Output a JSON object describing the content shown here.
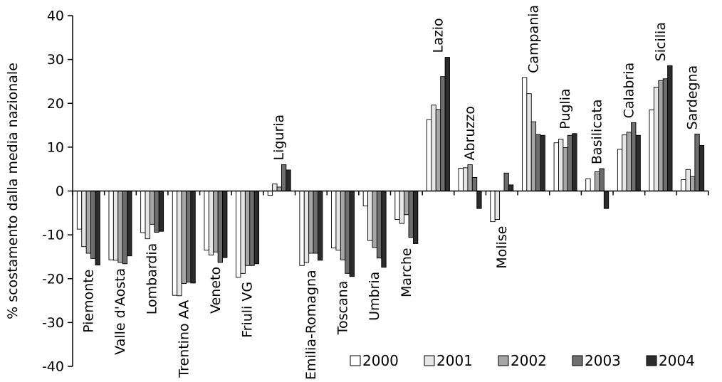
{
  "chart_data": {
    "type": "bar",
    "ylabel": "% scostamento dalla media nazionale",
    "xlabel": "",
    "title": "",
    "ylim": [
      -40,
      40
    ],
    "yticks": [
      40,
      30,
      20,
      10,
      0,
      -10,
      -20,
      -30,
      -40
    ],
    "legend_position": "bottom-right",
    "grid": false,
    "categories": [
      "Piemonte",
      "Valle d'Aosta",
      "Lombardia",
      "Trentino AA",
      "Veneto",
      "Friuli VG",
      "Liguria",
      "Emilia-Romagna",
      "Toscana",
      "Umbria",
      "Marche",
      "Lazio",
      "Abruzzo",
      "Molise",
      "Campania",
      "Puglia",
      "Basilicata",
      "Calabria",
      "Sicilia",
      "Sardegna"
    ],
    "series": [
      {
        "name": "2000",
        "color": "#ffffff",
        "values": [
          -8.7,
          -15.7,
          -9.5,
          -23.8,
          -13.5,
          -19.7,
          -1.0,
          -17.0,
          -13.0,
          -3.4,
          -6.5,
          16.3,
          5.2,
          -7.0,
          25.9,
          11.0,
          2.8,
          9.5,
          18.5,
          2.6
        ]
      },
      {
        "name": "2001",
        "color": "#e6e6e6",
        "values": [
          -12.7,
          -15.8,
          -10.9,
          -23.9,
          -14.6,
          -18.8,
          1.6,
          -16.3,
          -13.5,
          -11.3,
          -7.4,
          19.6,
          5.3,
          -6.5,
          22.2,
          11.8,
          0.0,
          12.8,
          23.7,
          4.9
        ]
      },
      {
        "name": "2002",
        "color": "#a6a6a6",
        "values": [
          -14.2,
          -16.3,
          -7.6,
          -21.1,
          -13.9,
          -17.0,
          0.9,
          -14.2,
          -15.7,
          -12.9,
          -5.4,
          18.6,
          6.0,
          0.0,
          15.8,
          9.9,
          4.4,
          13.4,
          25.2,
          3.3
        ]
      },
      {
        "name": "2003",
        "color": "#6e6e6e",
        "values": [
          -15.4,
          -16.6,
          -9.4,
          -20.8,
          -16.3,
          -17.0,
          6.0,
          -14.2,
          -18.8,
          -15.3,
          -10.6,
          26.1,
          3.1,
          4.1,
          12.9,
          12.7,
          5.1,
          15.6,
          25.6,
          13.0
        ]
      },
      {
        "name": "2004",
        "color": "#2b2b2b",
        "values": [
          -16.9,
          -14.8,
          -9.2,
          -21.0,
          -15.2,
          -16.6,
          4.8,
          -15.8,
          -19.5,
          -17.4,
          -12.0,
          30.5,
          -4.0,
          1.4,
          12.7,
          13.1,
          -4.0,
          12.7,
          28.6,
          10.4
        ]
      }
    ]
  }
}
